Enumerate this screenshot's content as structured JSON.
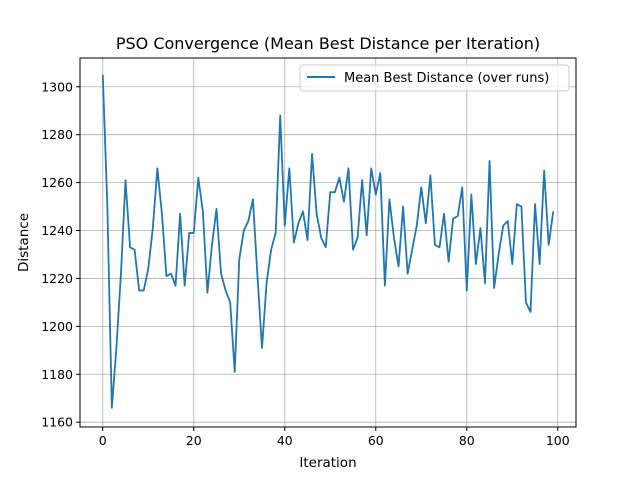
{
  "chart_data": {
    "type": "line",
    "title": "PSO Convergence (Mean Best Distance per Iteration)",
    "xlabel": "Iteration",
    "ylabel": "Distance",
    "xlim": [
      -5,
      104
    ],
    "ylim": [
      1158,
      1312
    ],
    "xticks": [
      0,
      20,
      40,
      60,
      80,
      100
    ],
    "yticks": [
      1160,
      1180,
      1200,
      1220,
      1240,
      1260,
      1280,
      1300
    ],
    "grid": true,
    "legend_position": "top-right",
    "series": [
      {
        "name": "Mean Best Distance (over runs)",
        "color": "#1f77b4",
        "x": [
          0,
          1,
          2,
          3,
          4,
          5,
          6,
          7,
          8,
          9,
          10,
          11,
          12,
          13,
          14,
          15,
          16,
          17,
          18,
          19,
          20,
          21,
          22,
          23,
          24,
          25,
          26,
          27,
          28,
          29,
          30,
          31,
          32,
          33,
          34,
          35,
          36,
          37,
          38,
          39,
          40,
          41,
          42,
          43,
          44,
          45,
          46,
          47,
          48,
          49,
          50,
          51,
          52,
          53,
          54,
          55,
          56,
          57,
          58,
          59,
          60,
          61,
          62,
          63,
          64,
          65,
          66,
          67,
          68,
          69,
          70,
          71,
          72,
          73,
          74,
          75,
          76,
          77,
          78,
          79,
          80,
          81,
          82,
          83,
          84,
          85,
          86,
          87,
          88,
          89,
          90,
          91,
          92,
          93,
          94,
          95,
          96,
          97,
          98,
          99
        ],
        "values": [
          1305,
          1251,
          1166,
          1191,
          1222,
          1261,
          1233,
          1232,
          1215,
          1215,
          1224,
          1241,
          1266,
          1247,
          1221,
          1222,
          1217,
          1247,
          1217,
          1239,
          1239,
          1262,
          1248,
          1214,
          1234,
          1249,
          1222,
          1215,
          1210,
          1181,
          1228,
          1240,
          1244,
          1253,
          1221,
          1191,
          1218,
          1232,
          1239,
          1288,
          1242,
          1266,
          1235,
          1243,
          1248,
          1236,
          1272,
          1247,
          1237,
          1233,
          1256,
          1256,
          1262,
          1252,
          1266,
          1232,
          1237,
          1261,
          1238,
          1266,
          1255,
          1264,
          1217,
          1253,
          1237,
          1225,
          1250,
          1222,
          1232,
          1242,
          1258,
          1243,
          1263,
          1234,
          1233,
          1247,
          1227,
          1245,
          1246,
          1258,
          1215,
          1255,
          1226,
          1241,
          1218,
          1269,
          1216,
          1230,
          1242,
          1244,
          1226,
          1251,
          1250,
          1210,
          1206,
          1251,
          1226,
          1265,
          1234,
          1248
        ]
      }
    ]
  }
}
